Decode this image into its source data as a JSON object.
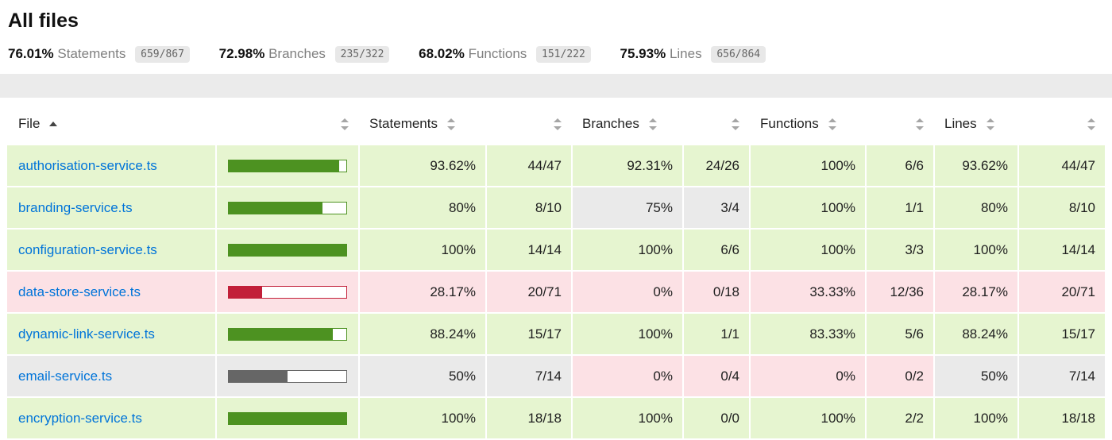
{
  "page": {
    "title": "All files"
  },
  "summary": [
    {
      "pct": "76.01%",
      "label": "Statements",
      "fraction": "659/867"
    },
    {
      "pct": "72.98%",
      "label": "Branches",
      "fraction": "235/322"
    },
    {
      "pct": "68.02%",
      "label": "Functions",
      "fraction": "151/222"
    },
    {
      "pct": "75.93%",
      "label": "Lines",
      "fraction": "656/864"
    }
  ],
  "status_level": "medium",
  "table": {
    "header": {
      "file": "File",
      "statements": "Statements",
      "branches": "Branches",
      "functions": "Functions",
      "lines": "Lines",
      "sort_column": "File",
      "sort_direction": "ascending"
    },
    "rows": [
      {
        "file": "authorisation-service.ts",
        "file_level": "high",
        "bar": {
          "pct": 93.62,
          "level": "high"
        },
        "statements": {
          "pct": "93.62%",
          "pct_level": "high",
          "raw": "44/47",
          "raw_level": "high"
        },
        "branches": {
          "pct": "92.31%",
          "pct_level": "high",
          "raw": "24/26",
          "raw_level": "high"
        },
        "functions": {
          "pct": "100%",
          "pct_level": "high",
          "raw": "6/6",
          "raw_level": "high"
        },
        "lines": {
          "pct": "93.62%",
          "pct_level": "high",
          "raw": "44/47",
          "raw_level": "high"
        }
      },
      {
        "file": "branding-service.ts",
        "file_level": "high",
        "bar": {
          "pct": 80,
          "level": "high"
        },
        "statements": {
          "pct": "80%",
          "pct_level": "high",
          "raw": "8/10",
          "raw_level": "high"
        },
        "branches": {
          "pct": "75%",
          "pct_level": "medium",
          "raw": "3/4",
          "raw_level": "medium"
        },
        "functions": {
          "pct": "100%",
          "pct_level": "high",
          "raw": "1/1",
          "raw_level": "high"
        },
        "lines": {
          "pct": "80%",
          "pct_level": "high",
          "raw": "8/10",
          "raw_level": "high"
        }
      },
      {
        "file": "configuration-service.ts",
        "file_level": "high",
        "bar": {
          "pct": 100,
          "level": "high"
        },
        "statements": {
          "pct": "100%",
          "pct_level": "high",
          "raw": "14/14",
          "raw_level": "high"
        },
        "branches": {
          "pct": "100%",
          "pct_level": "high",
          "raw": "6/6",
          "raw_level": "high"
        },
        "functions": {
          "pct": "100%",
          "pct_level": "high",
          "raw": "3/3",
          "raw_level": "high"
        },
        "lines": {
          "pct": "100%",
          "pct_level": "high",
          "raw": "14/14",
          "raw_level": "high"
        }
      },
      {
        "file": "data-store-service.ts",
        "file_level": "low",
        "bar": {
          "pct": 28.17,
          "level": "low"
        },
        "statements": {
          "pct": "28.17%",
          "pct_level": "low",
          "raw": "20/71",
          "raw_level": "low"
        },
        "branches": {
          "pct": "0%",
          "pct_level": "low",
          "raw": "0/18",
          "raw_level": "low"
        },
        "functions": {
          "pct": "33.33%",
          "pct_level": "low",
          "raw": "12/36",
          "raw_level": "low"
        },
        "lines": {
          "pct": "28.17%",
          "pct_level": "low",
          "raw": "20/71",
          "raw_level": "low"
        }
      },
      {
        "file": "dynamic-link-service.ts",
        "file_level": "high",
        "bar": {
          "pct": 88.24,
          "level": "high"
        },
        "statements": {
          "pct": "88.24%",
          "pct_level": "high",
          "raw": "15/17",
          "raw_level": "high"
        },
        "branches": {
          "pct": "100%",
          "pct_level": "high",
          "raw": "1/1",
          "raw_level": "high"
        },
        "functions": {
          "pct": "83.33%",
          "pct_level": "high",
          "raw": "5/6",
          "raw_level": "high"
        },
        "lines": {
          "pct": "88.24%",
          "pct_level": "high",
          "raw": "15/17",
          "raw_level": "high"
        }
      },
      {
        "file": "email-service.ts",
        "file_level": "medium",
        "bar": {
          "pct": 50,
          "level": "medium"
        },
        "statements": {
          "pct": "50%",
          "pct_level": "medium",
          "raw": "7/14",
          "raw_level": "medium"
        },
        "branches": {
          "pct": "0%",
          "pct_level": "low",
          "raw": "0/4",
          "raw_level": "low"
        },
        "functions": {
          "pct": "0%",
          "pct_level": "low",
          "raw": "0/2",
          "raw_level": "low"
        },
        "lines": {
          "pct": "50%",
          "pct_level": "medium",
          "raw": "7/14",
          "raw_level": "medium"
        }
      },
      {
        "file": "encryption-service.ts",
        "file_level": "high",
        "bar": {
          "pct": 100,
          "level": "high"
        },
        "statements": {
          "pct": "100%",
          "pct_level": "high",
          "raw": "18/18",
          "raw_level": "high"
        },
        "branches": {
          "pct": "100%",
          "pct_level": "high",
          "raw": "0/0",
          "raw_level": "high"
        },
        "functions": {
          "pct": "100%",
          "pct_level": "high",
          "raw": "2/2",
          "raw_level": "high"
        },
        "lines": {
          "pct": "100%",
          "pct_level": "high",
          "raw": "18/18",
          "raw_level": "high"
        }
      }
    ]
  },
  "colors": {
    "high_bg": "#E6F5D0",
    "medium_bg": "#EAEAEA",
    "low_bg": "#FCE1E5",
    "high_fill": "#4D9221",
    "medium_fill": "#666666",
    "low_fill": "#C21F39",
    "link": "#0074D9",
    "fraction_badge_bg": "#E8E8E8",
    "status_line_bg": "#EBEBEB"
  }
}
